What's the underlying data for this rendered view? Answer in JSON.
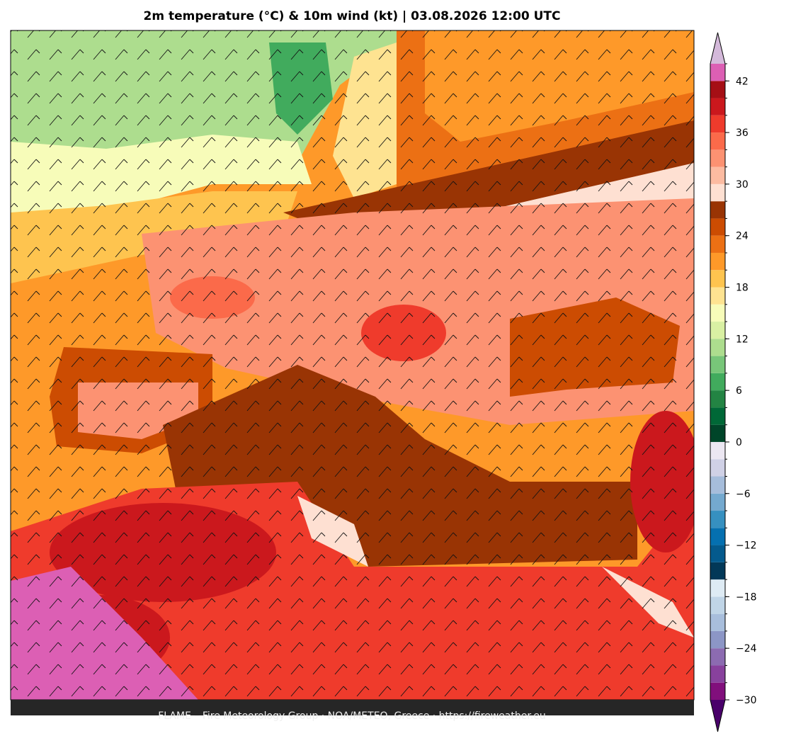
{
  "title": "2m temperature (°C) & 10m wind (kt)  |  03.08.2026 12:00 UTC",
  "footer": "FLAME – Fire Meteorology Group · NOA/METEO, Greece · https://fireweather.eu",
  "colorbar": {
    "bounds": [
      -30,
      -28,
      -26,
      -24,
      -22,
      -20,
      -18,
      -16,
      -14,
      -12,
      -10,
      -8,
      -6,
      -4,
      -2,
      0,
      2,
      4,
      6,
      8,
      10,
      12,
      14,
      16,
      18,
      20,
      22,
      24,
      26,
      28,
      30,
      32,
      34,
      36,
      38,
      40,
      42,
      44
    ],
    "colors": [
      "#810f7c",
      "#88419d",
      "#8c6bb1",
      "#8c96c6",
      "#a8bedc",
      "#c0d5e7",
      "#deebf4",
      "#023858",
      "#045a8d",
      "#0570b0",
      "#3690c0",
      "#74a9cf",
      "#a6bddb",
      "#d0d1e6",
      "#ece7f2",
      "#004529",
      "#006837",
      "#238443",
      "#41ab5d",
      "#78c679",
      "#addd8e",
      "#d9f0a3",
      "#f7fcb9",
      "#fee391",
      "#fec44f",
      "#fe9929",
      "#ec7014",
      "#cc4c02",
      "#993404",
      "#fee0d2",
      "#fcbba1",
      "#fc9272",
      "#fb6a4a",
      "#ef3b2c",
      "#cb181d",
      "#a50f15",
      "#dc5fb4"
    ],
    "under_color": "#49006a",
    "over_color": "#d4b9da",
    "ticks": [
      {
        "value": -30,
        "label": "−30"
      },
      {
        "value": -24,
        "label": "−24"
      },
      {
        "value": -18,
        "label": "−18"
      },
      {
        "value": -12,
        "label": "−12"
      },
      {
        "value": -6,
        "label": "−6"
      },
      0,
      6,
      12,
      18,
      24,
      30,
      36,
      42
    ]
  }
}
